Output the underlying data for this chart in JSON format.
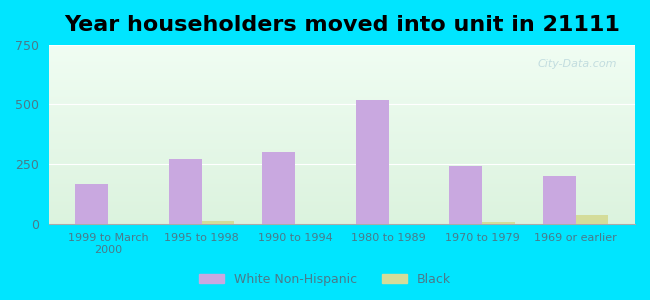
{
  "title": "Year householders moved into unit in 21111",
  "categories": [
    "1999 to March\n2000",
    "1995 to 1998",
    "1990 to 1994",
    "1980 to 1989",
    "1970 to 1979",
    "1969 or earlier"
  ],
  "white_values": [
    165,
    270,
    300,
    520,
    242,
    200
  ],
  "black_values": [
    0,
    12,
    0,
    0,
    8,
    35
  ],
  "white_color": "#c9a8e0",
  "black_color": "#d4dc9a",
  "ylim": [
    0,
    750
  ],
  "yticks": [
    0,
    250,
    500,
    750
  ],
  "background_outer": "#00e5ff",
  "background_inner_top": "#e8f8f0",
  "background_inner_bottom": "#d0f0e8",
  "title_fontsize": 16,
  "tick_label_color": "#4a7a8a",
  "watermark": "City-Data.com"
}
